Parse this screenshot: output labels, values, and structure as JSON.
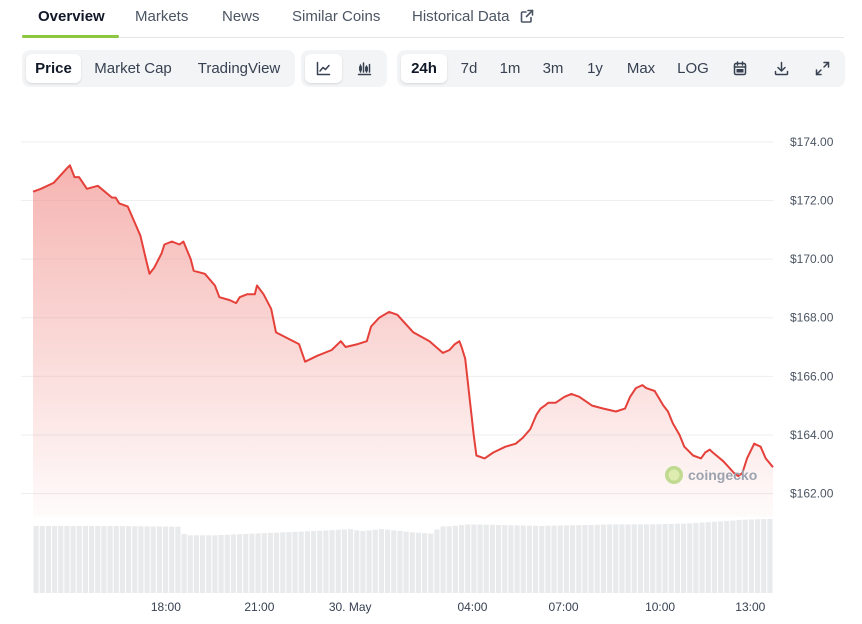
{
  "tabs": [
    {
      "label": "Overview",
      "active": true
    },
    {
      "label": "Markets"
    },
    {
      "label": "News"
    },
    {
      "label": "Similar Coins"
    },
    {
      "label": "Historical Data"
    }
  ],
  "view_toggle": [
    "Price",
    "Market Cap",
    "TradingView"
  ],
  "chart_style_icons": [
    "line-chart-icon",
    "candlestick-icon"
  ],
  "ranges": [
    "24h",
    "7d",
    "1m",
    "3m",
    "1y",
    "Max",
    "LOG"
  ],
  "action_icons": [
    "calendar-icon",
    "download-icon",
    "fullscreen-icon"
  ],
  "watermark": "coingecko",
  "colors": {
    "line": "#e5403a",
    "fill": "#f29c98",
    "accent": "#8dc63f",
    "volume": "#e9eaec"
  },
  "chart_data": {
    "type": "area",
    "title": "",
    "xlabel": "",
    "ylabel": "",
    "ylim": [
      161.2,
      175.6
    ],
    "yticks": [
      174.0,
      172.0,
      170.0,
      168.0,
      166.0,
      164.0,
      162.0
    ],
    "ytick_labels": [
      "$174.00",
      "$172.00",
      "$170.00",
      "$168.00",
      "$166.00",
      "$164.00",
      "$162.00"
    ],
    "xlim": [
      0,
      24.45
    ],
    "xticks": [
      4.39,
      7.48,
      10.48,
      14.52,
      17.53,
      20.72,
      23.7
    ],
    "xtick_labels": [
      "18:00",
      "21:00",
      "30. May",
      "04:00",
      "07:00",
      "10:00",
      "13:00"
    ],
    "grid": true,
    "series": [
      {
        "x": [
          0.0,
          0.26,
          0.68,
          1.12,
          1.22,
          1.37,
          1.52,
          1.78,
          2.14,
          2.61,
          2.73,
          2.85,
          3.13,
          3.38,
          3.55,
          3.73,
          3.85,
          4.0,
          4.25,
          4.34,
          4.59,
          4.84,
          4.97,
          5.21,
          5.31,
          5.68,
          6.01,
          6.16,
          6.5,
          6.71,
          6.83,
          7.07,
          7.33,
          7.4,
          7.62,
          7.87,
          8.03,
          8.79,
          8.99,
          9.39,
          9.87,
          10.17,
          10.33,
          10.73,
          11.03,
          11.17,
          11.44,
          11.77,
          12.04,
          12.3,
          12.57,
          13.1,
          13.54,
          13.76,
          13.94,
          14.09,
          14.16,
          14.28,
          14.56,
          14.65,
          14.92,
          15.21,
          15.61,
          15.95,
          16.18,
          16.43,
          16.64,
          16.77,
          16.91,
          17.03,
          17.27,
          17.56,
          17.79,
          18.05,
          18.47,
          18.85,
          19.26,
          19.56,
          19.73,
          19.92,
          20.13,
          20.26,
          20.54,
          20.83,
          20.98,
          21.14,
          21.36,
          21.52,
          21.81,
          22.07,
          22.21,
          22.36,
          22.46,
          22.81,
          23.16,
          23.3,
          23.44,
          23.59,
          23.83,
          24.04,
          24.21,
          24.45
        ],
        "y": [
          172.3,
          172.4,
          172.6,
          173.1,
          173.2,
          172.8,
          172.8,
          172.4,
          172.5,
          172.1,
          172.1,
          171.9,
          171.8,
          171.2,
          170.8,
          170.0,
          169.5,
          169.7,
          170.2,
          170.5,
          170.6,
          170.5,
          170.6,
          170.0,
          169.6,
          169.5,
          169.1,
          168.7,
          168.6,
          168.5,
          168.7,
          168.8,
          168.8,
          169.1,
          168.8,
          168.3,
          167.5,
          167.1,
          166.5,
          166.7,
          166.9,
          167.2,
          167.0,
          167.1,
          167.2,
          167.7,
          168.0,
          168.2,
          168.1,
          167.8,
          167.5,
          167.2,
          166.8,
          166.9,
          167.1,
          167.2,
          167.0,
          166.6,
          164.0,
          163.3,
          163.2,
          163.4,
          163.6,
          163.7,
          163.9,
          164.2,
          164.7,
          164.9,
          165.0,
          165.1,
          165.1,
          165.3,
          165.4,
          165.3,
          165.0,
          164.9,
          164.8,
          164.9,
          165.3,
          165.6,
          165.7,
          165.6,
          165.5,
          165.0,
          164.8,
          164.4,
          164.0,
          163.6,
          163.3,
          163.2,
          163.4,
          163.5,
          163.4,
          163.1,
          162.7,
          162.6,
          162.7,
          163.2,
          163.7,
          163.6,
          163.2,
          162.9
        ]
      },
      {
        "name": "volume",
        "x": [
          0.0,
          2.4,
          4.8,
          4.96,
          5.12,
          6.0,
          7.2,
          8.4,
          9.6,
          10.56,
          10.8,
          11.04,
          11.52,
          12.0,
          12.48,
          13.2,
          13.44,
          13.92,
          14.4,
          15.6,
          16.8,
          18.0,
          19.2,
          20.4,
          21.6,
          22.8,
          23.52,
          24.4
        ],
        "y": [
          0.86,
          0.86,
          0.85,
          0.76,
          0.74,
          0.74,
          0.76,
          0.78,
          0.8,
          0.82,
          0.79,
          0.8,
          0.82,
          0.8,
          0.78,
          0.76,
          0.85,
          0.86,
          0.88,
          0.87,
          0.86,
          0.87,
          0.88,
          0.88,
          0.89,
          0.92,
          0.94,
          0.95
        ]
      }
    ]
  }
}
